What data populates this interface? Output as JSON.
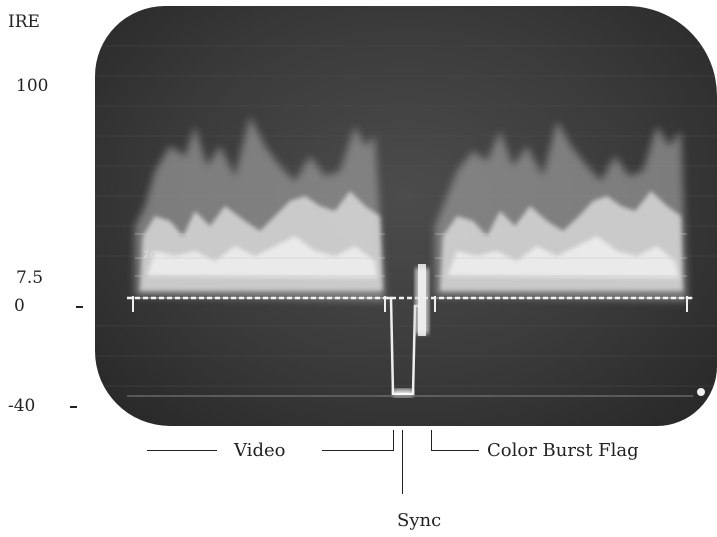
{
  "axis": {
    "unit_label": "IRE",
    "ticks": [
      {
        "label": "100",
        "value": 100
      },
      {
        "label": "7.5",
        "value": 7.5
      },
      {
        "label": "0",
        "value": 0
      },
      {
        "label": "-40",
        "value": -40
      }
    ]
  },
  "graticule": {
    "label": "20"
  },
  "annotations": {
    "video": "Video",
    "sync": "Sync",
    "color_burst": "Color Burst Flag"
  },
  "colors": {
    "screen": "#3a3a3a",
    "trace": "#e8e8e8",
    "text": "#222222"
  }
}
